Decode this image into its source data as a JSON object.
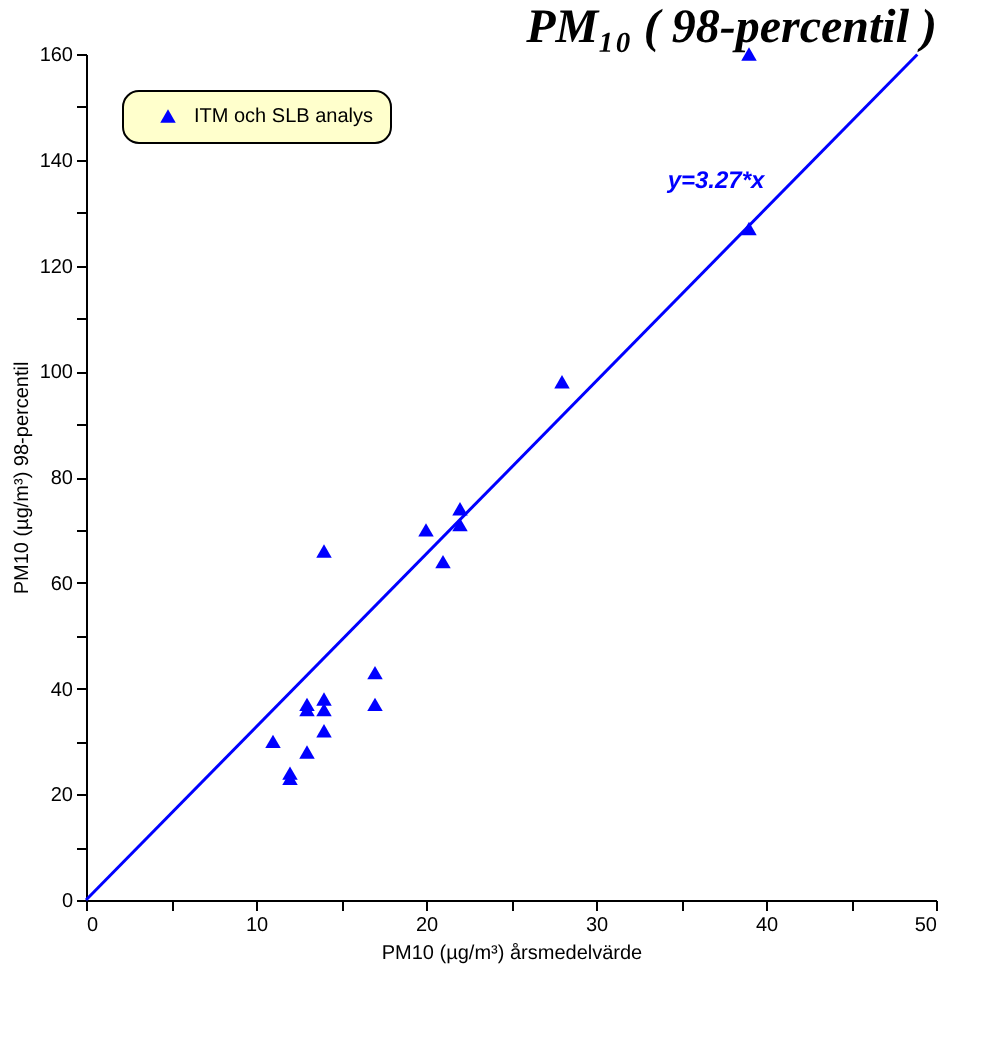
{
  "chart_data": {
    "type": "scatter",
    "title": "PM₁₀ ( 98-percentil )",
    "xlabel": "PM10 (µg/m³)   årsmedelvärde",
    "ylabel": "PM10 (µg/m³)   98-percentil",
    "xlim": [
      0,
      50
    ],
    "ylim": [
      0,
      160
    ],
    "xticks": [
      0,
      {
        "value": 5,
        "label": null
      },
      10,
      {
        "value": 15,
        "label": null
      },
      20,
      {
        "value": 25,
        "label": null
      },
      30,
      {
        "value": 35,
        "label": null
      },
      40,
      {
        "value": 45,
        "label": null
      },
      50
    ],
    "yticks": [
      0,
      {
        "value": 10,
        "label": null
      },
      20,
      {
        "value": 30,
        "label": null
      },
      40,
      {
        "value": 50,
        "label": null
      },
      60,
      {
        "value": 70,
        "label": null
      },
      80,
      {
        "value": 90,
        "label": null
      },
      100,
      {
        "value": 110,
        "label": null
      },
      120,
      {
        "value": 130,
        "label": null
      },
      140,
      {
        "value": 150,
        "label": null
      },
      160
    ],
    "grid": false,
    "legend": "top left",
    "marker": "triangle",
    "series": [
      {
        "name": "ITM och SLB analys",
        "color": "#0000ff",
        "x": [
          11,
          12,
          12,
          13,
          13,
          13,
          14,
          14,
          14,
          14,
          17,
          17,
          20,
          21,
          22,
          22,
          28,
          39,
          39
        ],
        "values": [
          30,
          24,
          23,
          28,
          37,
          36,
          38,
          36,
          32,
          66,
          43,
          37,
          70,
          64,
          74,
          71,
          98,
          127,
          160
        ]
      },
      {
        "color": "#0000ff",
        "type": "line",
        "marker": "none",
        "line_style": "solid",
        "x": [
          0,
          48.9
        ],
        "values": [
          0,
          159.9
        ]
      }
    ],
    "annotations": [
      "y=3.27*x"
    ]
  }
}
